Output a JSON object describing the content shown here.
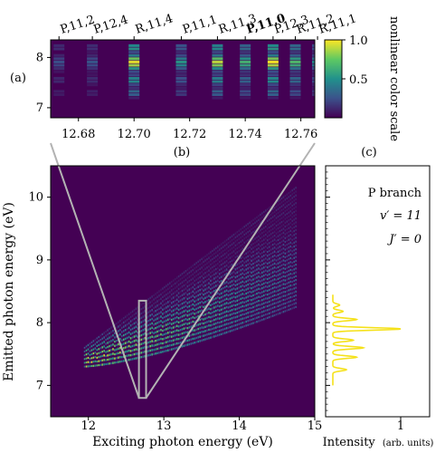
{
  "chart_data": [
    {
      "panel": "(a)",
      "type": "heatmap",
      "xlim": [
        12.67,
        12.765
      ],
      "ylim": [
        6.8,
        8.35
      ],
      "xticks": [
        "12.68",
        "12.70",
        "12.72",
        "12.74",
        "12.76"
      ],
      "yticks": [
        "7",
        "8"
      ],
      "colorscale": {
        "min_label": "",
        "ticks": [
          "0.5",
          "1.0"
        ],
        "label": "nonlinear color scale"
      },
      "colormap": [
        "#440154",
        "#3b528b",
        "#21918c",
        "#5ec962",
        "#fde725"
      ],
      "lines": [
        {
          "label": "P,11,2",
          "bold": false,
          "x": 12.673,
          "intensity": 0.1
        },
        {
          "label": "P,12,4",
          "bold": false,
          "x": 12.685,
          "intensity": 0.12
        },
        {
          "label": "R,11,4",
          "bold": false,
          "x": 12.7,
          "intensity": 0.95
        },
        {
          "label": "P,11,1",
          "bold": false,
          "x": 12.717,
          "intensity": 0.35
        },
        {
          "label": "R,11,3",
          "bold": false,
          "x": 12.73,
          "intensity": 0.85
        },
        {
          "label": "P,11,0",
          "bold": true,
          "x": 12.74,
          "intensity": 0.5
        },
        {
          "label": "P,12,3",
          "bold": false,
          "x": 12.75,
          "intensity": 1.0
        },
        {
          "label": "R,11,2",
          "bold": false,
          "x": 12.758,
          "intensity": 0.55
        },
        {
          "label": "R,11,1",
          "bold": false,
          "x": 12.766,
          "intensity": 0.3
        }
      ]
    },
    {
      "panel": "(b)",
      "type": "heatmap",
      "xlabel": "Exciting photon energy (eV)",
      "ylabel": "Emitted photon energy (eV)",
      "xlim": [
        11.5,
        15
      ],
      "ylim": [
        6.5,
        10.5
      ],
      "xticks": [
        "12",
        "13",
        "14",
        "15"
      ],
      "yticks": [
        "7",
        "8",
        "9",
        "10"
      ],
      "zoom_box": {
        "x": [
          12.67,
          12.765
        ],
        "y": [
          6.8,
          8.35
        ]
      },
      "band": {
        "x_start": 11.95,
        "x_end": 14.75,
        "y_low_start": 7.3,
        "y_low_end": 8.25,
        "y_high_start": 7.6,
        "y_high_end": 10.15
      }
    },
    {
      "panel": "(c)",
      "type": "line",
      "xlabel": "Intensity",
      "xlabel_units": "(arb. units)",
      "ylim": [
        6.5,
        10.5
      ],
      "xticks": [
        "1"
      ],
      "annotations": [
        "P branch",
        "v′ = 11",
        "J′ = 0"
      ],
      "color": "#f5e11a",
      "peaks": [
        {
          "y": 7.25,
          "intensity": 0.2
        },
        {
          "y": 7.45,
          "intensity": 0.35
        },
        {
          "y": 7.6,
          "intensity": 0.45
        },
        {
          "y": 7.72,
          "intensity": 0.3
        },
        {
          "y": 7.9,
          "intensity": 1.0
        },
        {
          "y": 8.05,
          "intensity": 0.35
        },
        {
          "y": 8.18,
          "intensity": 0.15
        },
        {
          "y": 8.28,
          "intensity": 0.1
        }
      ]
    }
  ]
}
